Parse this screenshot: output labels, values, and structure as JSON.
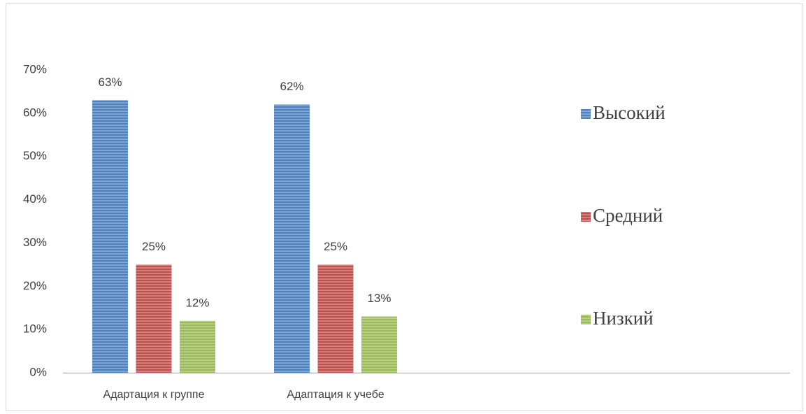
{
  "chart_data": {
    "type": "bar",
    "categories": [
      "Адартация к группе",
      "Адаптация к учебе"
    ],
    "series": [
      {
        "name": "Высокий",
        "color": "#4f81bd",
        "values": [
          63,
          62
        ],
        "value_labels": [
          "63%",
          "62%"
        ]
      },
      {
        "name": "Средний",
        "color": "#c0504d",
        "values": [
          25,
          25
        ],
        "value_labels": [
          "25%",
          "25%"
        ]
      },
      {
        "name": "Низкий",
        "color": "#9bbb59",
        "values": [
          12,
          13
        ],
        "value_labels": [
          "12%",
          "13%"
        ]
      }
    ],
    "ylim": [
      0,
      70
    ],
    "yticks": [
      {
        "value": 0,
        "label": "0%"
      },
      {
        "value": 10,
        "label": "10%"
      },
      {
        "value": 20,
        "label": "20%"
      },
      {
        "value": 30,
        "label": "30%"
      },
      {
        "value": 40,
        "label": "40%"
      },
      {
        "value": 50,
        "label": "50%"
      },
      {
        "value": 60,
        "label": "60%"
      },
      {
        "value": 70,
        "label": "70%"
      }
    ],
    "grid": false,
    "legend": "right"
  }
}
